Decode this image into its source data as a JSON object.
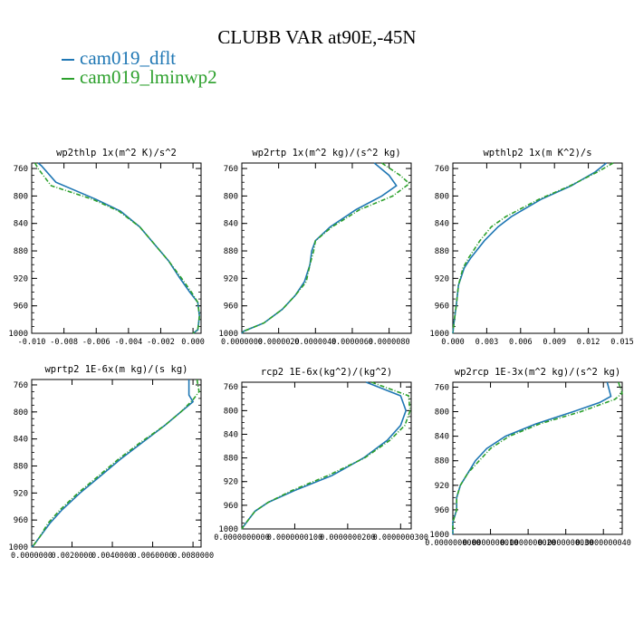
{
  "title": "CLUBB VAR at90E,-45N",
  "legend": [
    {
      "name": "cam019_dflt",
      "color": "#1f77b4"
    },
    {
      "name": "cam019_lminwp2",
      "color": "#2ca02c"
    }
  ],
  "chart_data": [
    {
      "type": "line",
      "title": "wp2thlp  1x(m^2 K)/s^2",
      "y_ticks": [
        "760",
        "800",
        "840",
        "880",
        "920",
        "960",
        "1000"
      ],
      "x_ticks": [
        "-0.010",
        "-0.008",
        "-0.006",
        "-0.004",
        "-0.002",
        "0.000"
      ],
      "xlim": [
        -0.01,
        0.0005
      ],
      "ylim": [
        1000,
        752
      ],
      "y_log": false,
      "series": [
        {
          "name": "cam019_dflt",
          "y": [
            752,
            756,
            780,
            805,
            822,
            845,
            870,
            895,
            920,
            940,
            955,
            975,
            995,
            1000
          ],
          "values": [
            -0.0096,
            -0.0094,
            -0.0085,
            -0.006,
            -0.0045,
            -0.0033,
            -0.0024,
            -0.0015,
            -0.0008,
            -0.0002,
            0.0003,
            0.0004,
            0.0003,
            0.0
          ]
        },
        {
          "name": "cam019_lminwp2",
          "y": [
            752,
            760,
            785,
            805,
            822,
            845,
            870,
            895,
            920,
            940,
            955,
            975,
            995,
            1000
          ],
          "values": [
            -0.0098,
            -0.0096,
            -0.0088,
            -0.0062,
            -0.0046,
            -0.0033,
            -0.0024,
            -0.0015,
            -0.0007,
            -0.0001,
            0.0003,
            0.0004,
            0.0003,
            0.0
          ]
        }
      ]
    },
    {
      "type": "line",
      "title": "wp2rtp  1x(m^2 kg)/(s^2 kg)",
      "y_ticks": [
        "760",
        "800",
        "840",
        "880",
        "920",
        "960",
        "1000"
      ],
      "x_ticks": [
        "0.0000000",
        "0.0000020",
        "0.0000040",
        "0.0000060",
        "0.0000080"
      ],
      "x_tick_values": [
        0,
        2e-06,
        4e-06,
        6e-06,
        8e-06
      ],
      "xlim": [
        0,
        9.2e-06
      ],
      "ylim": [
        1000,
        752
      ],
      "y_log": false,
      "series": [
        {
          "name": "cam019_dflt",
          "y": [
            752,
            770,
            785,
            800,
            820,
            845,
            865,
            880,
            900,
            925,
            945,
            965,
            985,
            997,
            1000
          ],
          "values": [
            7.2e-06,
            8e-06,
            8.4e-06,
            7.6e-06,
            6.2e-06,
            4.8e-06,
            4e-06,
            3.8e-06,
            3.7e-06,
            3.4e-06,
            2.9e-06,
            2.2e-06,
            1.2e-06,
            1e-07,
            0.0
          ]
        },
        {
          "name": "cam019_lminwp2",
          "y": [
            752,
            770,
            782,
            800,
            820,
            845,
            865,
            880,
            900,
            925,
            945,
            965,
            985,
            997,
            1000
          ],
          "values": [
            7.6e-06,
            8.6e-06,
            9.1e-06,
            8.2e-06,
            6.4e-06,
            4.9e-06,
            4e-06,
            3.9e-06,
            3.7e-06,
            3.5e-06,
            2.9e-06,
            2.2e-06,
            1.2e-06,
            1e-07,
            0.0
          ]
        }
      ]
    },
    {
      "type": "line",
      "title": "wpthlp2  1x(m K^2)/s",
      "y_ticks": [
        "760",
        "800",
        "840",
        "880",
        "920",
        "960",
        "1000"
      ],
      "x_ticks": [
        "0.000",
        "0.003",
        "0.006",
        "0.009",
        "0.012",
        "0.015"
      ],
      "xlim": [
        0,
        0.015
      ],
      "ylim": [
        1000,
        752
      ],
      "y_log": false,
      "series": [
        {
          "name": "cam019_dflt",
          "y": [
            752,
            765,
            785,
            805,
            830,
            845,
            865,
            890,
            905,
            930,
            960,
            985,
            1000
          ],
          "values": [
            0.0136,
            0.0126,
            0.0105,
            0.0078,
            0.0052,
            0.004,
            0.0028,
            0.0016,
            0.001,
            0.0005,
            0.0003,
            0.0001,
            0.0
          ]
        },
        {
          "name": "cam019_lminwp2",
          "y": [
            752,
            765,
            785,
            805,
            830,
            845,
            865,
            890,
            905,
            930,
            960,
            985,
            1000
          ],
          "values": [
            0.0142,
            0.0128,
            0.0104,
            0.0076,
            0.0047,
            0.0034,
            0.0024,
            0.0014,
            0.0009,
            0.0005,
            0.0003,
            0.0001,
            0.0
          ]
        }
      ]
    },
    {
      "type": "line",
      "title": "wprtp2  1E-6x(m kg)/(s kg)",
      "y_ticks": [
        "760",
        "800",
        "840",
        "880",
        "920",
        "960",
        "1000"
      ],
      "x_ticks": [
        "0.0000000",
        "0.0020000",
        "0.0040000",
        "0.0060000",
        "0.0080000"
      ],
      "x_tick_values": [
        0,
        0.002,
        0.004,
        0.006,
        0.008
      ],
      "xlim": [
        0,
        0.0084
      ],
      "ylim": [
        1000,
        752
      ],
      "y_log": false,
      "series": [
        {
          "name": "cam019_dflt",
          "y": [
            752,
            775,
            785,
            800,
            820,
            845,
            870,
            895,
            920,
            945,
            965,
            985,
            997,
            1000
          ],
          "values": [
            0.0078,
            0.0078,
            0.008,
            0.0074,
            0.0066,
            0.0055,
            0.0044,
            0.0034,
            0.0024,
            0.0015,
            0.0009,
            0.0004,
            0.0001,
            0.0
          ]
        },
        {
          "name": "cam019_lminwp2",
          "y": [
            752,
            770,
            782,
            800,
            820,
            845,
            870,
            895,
            920,
            945,
            965,
            985,
            997,
            1000
          ],
          "values": [
            0.0082,
            0.0083,
            0.008,
            0.0074,
            0.0066,
            0.0054,
            0.0043,
            0.0033,
            0.0023,
            0.0014,
            0.0008,
            0.0004,
            0.0001,
            0.0
          ]
        }
      ]
    },
    {
      "type": "line",
      "title": "rcp2  1E-6x(kg^2)/(kg^2)",
      "y_ticks": [
        "760",
        "800",
        "840",
        "880",
        "920",
        "960",
        "1000"
      ],
      "x_ticks": [
        "0.0000000000",
        "0.0000000100",
        "0.0000000200",
        "0.0000000300"
      ],
      "x_tick_values": [
        0,
        1e-08,
        2e-08,
        3e-08
      ],
      "xlim": [
        0,
        3.2e-08
      ],
      "ylim": [
        1000,
        752
      ],
      "y_log": false,
      "series": [
        {
          "name": "cam019_dflt",
          "y": [
            752,
            775,
            800,
            825,
            850,
            880,
            910,
            935,
            955,
            970,
            985,
            997,
            1000
          ],
          "values": [
            2.35e-08,
            3e-08,
            3.1e-08,
            3e-08,
            2.75e-08,
            2.3e-08,
            1.7e-08,
            1e-08,
            5e-09,
            2.5e-09,
            1.2e-09,
            2e-10,
            0.0
          ]
        },
        {
          "name": "cam019_lminwp2",
          "y": [
            752,
            775,
            800,
            825,
            850,
            880,
            910,
            935,
            955,
            970,
            985,
            997,
            1000
          ],
          "values": [
            2.45e-08,
            3.15e-08,
            3.18e-08,
            3.08e-08,
            2.8e-08,
            2.32e-08,
            1.62e-08,
            9.5e-09,
            5e-09,
            2.5e-09,
            1.2e-09,
            2e-10,
            0.0
          ]
        }
      ]
    },
    {
      "type": "line",
      "title": "wp2rcp  1E-3x(m^2 kg)/(s^2 kg)",
      "y_ticks": [
        "760",
        "800",
        "840",
        "880",
        "920",
        "960",
        "1000"
      ],
      "x_ticks": [
        "0.0000000000",
        "0.0000000010",
        "0.0000000020",
        "0.0000000030",
        "0.0000000040"
      ],
      "x_tick_values": [
        0,
        1e-09,
        2e-09,
        3e-09,
        4e-09
      ],
      "xlim": [
        0,
        4.5e-09
      ],
      "ylim": [
        1000,
        752
      ],
      "y_log": false,
      "series": [
        {
          "name": "cam019_dflt",
          "y": [
            752,
            775,
            785,
            800,
            820,
            840,
            860,
            880,
            900,
            920,
            940,
            960,
            980,
            1000
          ],
          "values": [
            4.1e-09,
            4.2e-09,
            3.9e-09,
            3.2e-09,
            2.2e-09,
            1.4e-09,
            9e-10,
            6e-10,
            4e-10,
            2e-10,
            1e-10,
            1e-10,
            0.0,
            0.0
          ]
        },
        {
          "name": "cam019_lminwp2",
          "y": [
            752,
            770,
            780,
            800,
            820,
            840,
            860,
            880,
            900,
            920,
            940,
            960,
            980,
            1000
          ],
          "values": [
            4.4e-09,
            4.5e-09,
            4.3e-09,
            3.4e-09,
            2.3e-09,
            1.5e-09,
            1e-09,
            7e-10,
            4e-10,
            2e-10,
            1e-10,
            1e-10,
            0.0,
            0.0
          ]
        }
      ]
    }
  ]
}
